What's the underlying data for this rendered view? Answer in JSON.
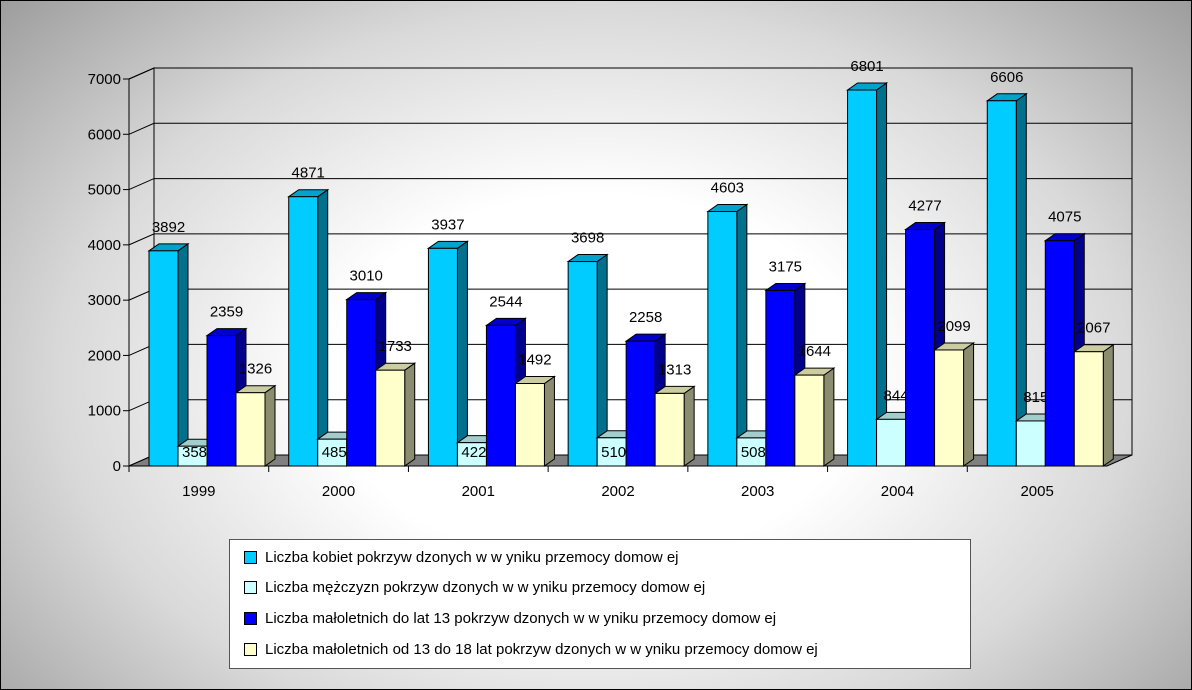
{
  "chart_data": {
    "type": "bar",
    "title": "",
    "xlabel": "",
    "ylabel": "",
    "ylim": [
      0,
      7000
    ],
    "yticks": [
      "0",
      "1000",
      "2000",
      "3000",
      "4000",
      "5000",
      "6000",
      "7000"
    ],
    "categories": [
      "1999",
      "2000",
      "2001",
      "2002",
      "2003",
      "2004",
      "2005"
    ],
    "grid": true,
    "legend_position": "bottom",
    "series": [
      {
        "name": "Liczba kobiet pokrzyw dzonych w  w yniku przemocy domow ej",
        "color": "#00ccff",
        "values": [
          3892,
          4871,
          3937,
          3698,
          4603,
          6801,
          6606
        ]
      },
      {
        "name": "Liczba mężczyzn pokrzyw dzonych w  w yniku przemocy domow ej",
        "color": "#ccffff",
        "values": [
          358,
          485,
          422,
          510,
          508,
          844,
          815
        ]
      },
      {
        "name": "Liczba małoletnich do lat 13 pokrzyw dzonych w  w yniku przemocy domow ej",
        "color": "#0000ff",
        "values": [
          2359,
          3010,
          2544,
          2258,
          3175,
          4277,
          4075
        ]
      },
      {
        "name": "Liczba małoletnich od 13 do 18 lat pokrzyw dzonych w  w yniku przemocy domow ej",
        "color": "#ffffcc",
        "values": [
          1326,
          1733,
          1492,
          1313,
          1644,
          2099,
          2067
        ]
      }
    ]
  }
}
